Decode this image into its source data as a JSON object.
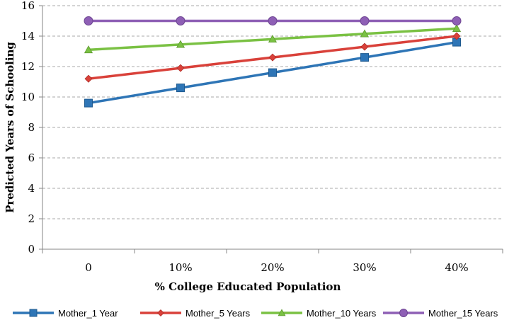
{
  "chart_data": {
    "type": "line",
    "title": "",
    "xlabel": "% College Educated Population",
    "ylabel": "Predicted Years of Schooling",
    "categories": [
      "0",
      "10%",
      "20%",
      "30%",
      "40%"
    ],
    "ylim": [
      0,
      16
    ],
    "yticks": [
      0,
      2,
      4,
      6,
      8,
      10,
      12,
      14,
      16
    ],
    "grid": "horizontal-dashed",
    "legend_position": "bottom",
    "series": [
      {
        "name": "Mother_1 Year",
        "values": [
          9.6,
          10.6,
          11.6,
          12.6,
          13.6
        ],
        "color": "#2e75b6",
        "marker": "square"
      },
      {
        "name": "Mother_5 Years",
        "values": [
          11.2,
          11.9,
          12.6,
          13.3,
          14.0
        ],
        "color": "#d9413a",
        "marker": "diamond"
      },
      {
        "name": "Mother_10 Years",
        "values": [
          13.1,
          13.45,
          13.8,
          14.15,
          14.5
        ],
        "color": "#7ac143",
        "marker": "triangle"
      },
      {
        "name": "Mother_15 Years",
        "values": [
          15.0,
          15.0,
          15.0,
          15.0,
          15.0
        ],
        "color": "#8e5fb5",
        "marker": "circle"
      }
    ]
  }
}
